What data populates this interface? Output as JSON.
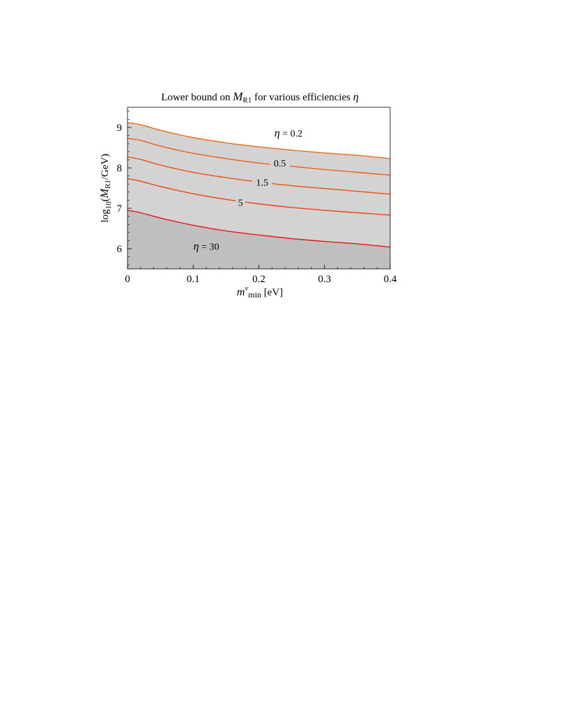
{
  "chart_data": {
    "type": "area",
    "title": {
      "prefix": "Lower bound on ",
      "symbol": "M",
      "symbol_sub": "R1",
      "suffix": " for various efficiencies ",
      "greek": "η"
    },
    "xlabel": {
      "symbol": "m",
      "sup": "ν",
      "sub": "min",
      "unit": " [eV]"
    },
    "ylabel": {
      "prefix": "log",
      "sub": "10",
      "open": "(",
      "symbol": "M",
      "symbol_sub": "R1",
      "rest": "/GeV)"
    },
    "xlim": [
      0,
      0.4
    ],
    "ylim": [
      5.5,
      9.5
    ],
    "x_ticks": [
      {
        "value": 0,
        "label": "0"
      },
      {
        "value": 0.1,
        "label": "0.1"
      },
      {
        "value": 0.2,
        "label": "0.2"
      },
      {
        "value": 0.3,
        "label": "0.3"
      },
      {
        "value": 0.4,
        "label": "0.4"
      }
    ],
    "y_ticks": [
      {
        "value": 6,
        "label": "6"
      },
      {
        "value": 7,
        "label": "7"
      },
      {
        "value": 8,
        "label": "8"
      },
      {
        "value": 9,
        "label": "9"
      }
    ],
    "grid": false,
    "x": [
      0,
      0.02,
      0.05,
      0.1,
      0.15,
      0.2,
      0.25,
      0.3,
      0.35,
      0.4
    ],
    "series": [
      {
        "name": "0.2",
        "values": [
          9.12,
          9.07,
          8.93,
          8.75,
          8.62,
          8.52,
          8.44,
          8.37,
          8.31,
          8.23
        ],
        "color": "#ee6a14"
      },
      {
        "name": "0.5",
        "values": [
          8.73,
          8.68,
          8.54,
          8.36,
          8.23,
          8.12,
          8.04,
          7.96,
          7.89,
          7.82
        ],
        "color": "#ef5e12"
      },
      {
        "name": "1.5",
        "values": [
          8.27,
          8.21,
          8.07,
          7.89,
          7.76,
          7.65,
          7.56,
          7.49,
          7.42,
          7.35
        ],
        "color": "#f04f10"
      },
      {
        "name": "5",
        "values": [
          7.73,
          7.67,
          7.54,
          7.36,
          7.22,
          7.11,
          7.02,
          6.95,
          6.89,
          6.83
        ],
        "color": "#f2400e"
      },
      {
        "name": "30",
        "values": [
          6.95,
          6.89,
          6.76,
          6.58,
          6.44,
          6.34,
          6.25,
          6.18,
          6.12,
          6.04
        ],
        "color": "#e8161a"
      }
    ],
    "annotations": [
      {
        "target": "0.2",
        "text": "η = 0.2",
        "x": 0.245,
        "y": 8.86,
        "gap": false
      },
      {
        "target": "0.5",
        "text": "0.5",
        "x": 0.232,
        "y": 8.12,
        "gap": true
      },
      {
        "target": "1.5",
        "text": "1.5",
        "x": 0.205,
        "y": 7.65,
        "gap": true
      },
      {
        "target": "5",
        "text": "5",
        "x": 0.172,
        "y": 7.15,
        "gap": true
      },
      {
        "target": "30",
        "text": "η = 30",
        "x": 0.12,
        "y": 6.06,
        "gap": false
      }
    ],
    "fills": {
      "allowed_region": "#d3d3d3",
      "excluded_region": "#bfbfbf"
    },
    "legend": "none"
  }
}
